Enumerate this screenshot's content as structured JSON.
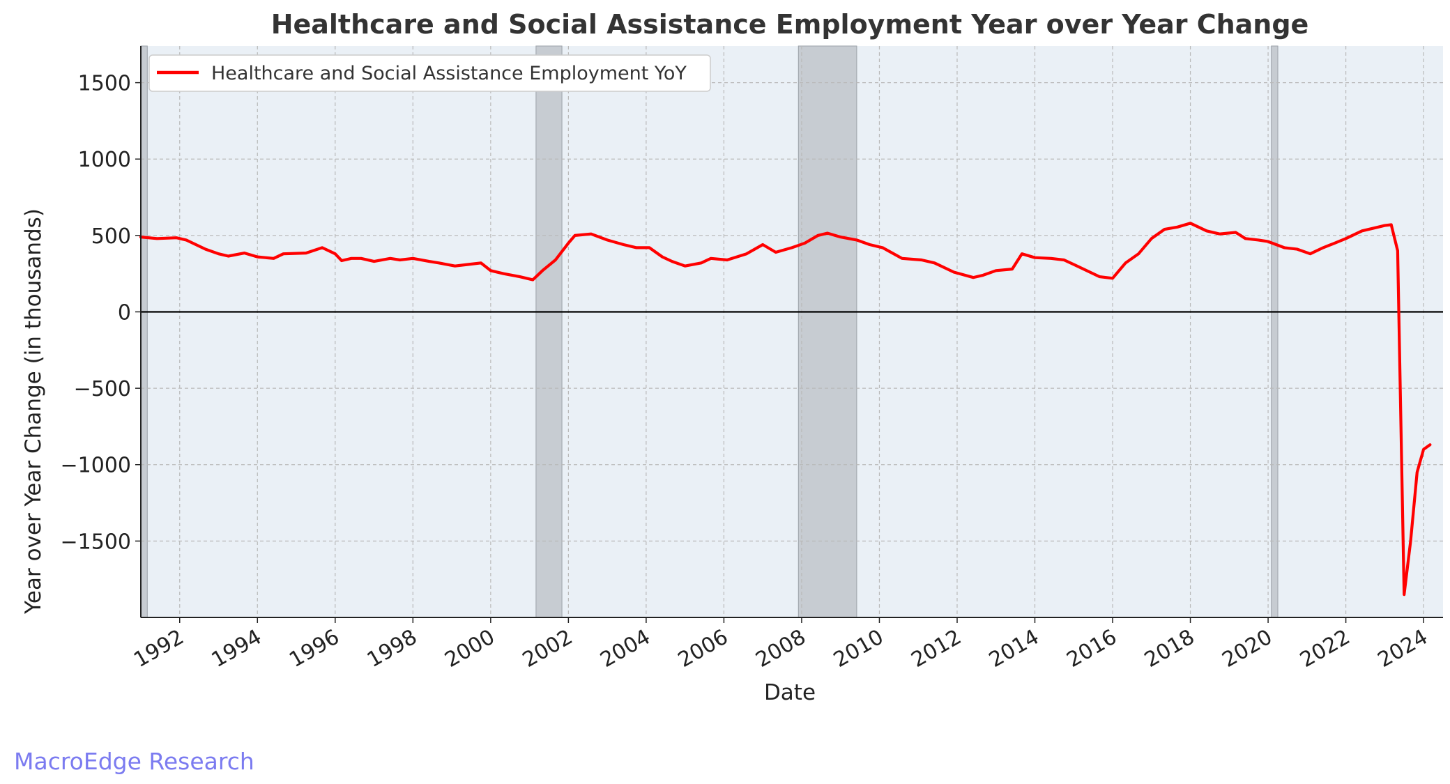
{
  "chart_data": {
    "type": "line",
    "title": "Healthcare and Social Assistance Employment Year over Year Change",
    "xlabel": "Date",
    "ylabel": "Year over Year Change (in thousands)",
    "x_ticks": [
      "1992",
      "1994",
      "1996",
      "1998",
      "2000",
      "2002",
      "2004",
      "2006",
      "2008",
      "2010",
      "2012",
      "2014",
      "2016",
      "2018",
      "2020",
      "2022",
      "2024"
    ],
    "y_ticks": [
      1500,
      1000,
      500,
      0,
      -500,
      -1000,
      -1500
    ],
    "y_tick_labels": [
      "1500",
      "1000",
      "500",
      "0",
      "−500",
      "−1000",
      "−1500"
    ],
    "xlim": [
      "1991-01",
      "2024-07"
    ],
    "ylim": [
      -2000,
      1740
    ],
    "grid": true,
    "legend_position": "top-left",
    "zero_line": true,
    "recessions": [
      [
        "1991-01",
        "1991-03"
      ],
      [
        "2001-03",
        "2001-11"
      ],
      [
        "2007-12",
        "2009-06"
      ],
      [
        "2020-02",
        "2020-04"
      ]
    ],
    "series": [
      {
        "name": "Healthcare and Social Assistance Employment YoY",
        "color": "#ff0000",
        "points": [
          [
            "1991-01",
            490
          ],
          [
            "1991-06",
            480
          ],
          [
            "1991-12",
            485
          ],
          [
            "1992-03",
            470
          ],
          [
            "1992-06",
            440
          ],
          [
            "1992-09",
            410
          ],
          [
            "1993-01",
            380
          ],
          [
            "1993-04",
            365
          ],
          [
            "1993-09",
            385
          ],
          [
            "1994-01",
            360
          ],
          [
            "1994-06",
            350
          ],
          [
            "1994-09",
            380
          ],
          [
            "1995-04",
            385
          ],
          [
            "1995-09",
            420
          ],
          [
            "1996-01",
            380
          ],
          [
            "1996-03",
            335
          ],
          [
            "1996-06",
            350
          ],
          [
            "1996-09",
            350
          ],
          [
            "1997-01",
            330
          ],
          [
            "1997-06",
            350
          ],
          [
            "1997-09",
            340
          ],
          [
            "1998-01",
            350
          ],
          [
            "1998-06",
            330
          ],
          [
            "1998-09",
            320
          ],
          [
            "1999-02",
            300
          ],
          [
            "1999-06",
            310
          ],
          [
            "1999-10",
            320
          ],
          [
            "2000-01",
            270
          ],
          [
            "2000-05",
            250
          ],
          [
            "2000-10",
            230
          ],
          [
            "2001-02",
            210
          ],
          [
            "2001-05",
            270
          ],
          [
            "2001-09",
            340
          ],
          [
            "2002-01",
            450
          ],
          [
            "2002-03",
            500
          ],
          [
            "2002-08",
            510
          ],
          [
            "2003-01",
            470
          ],
          [
            "2003-06",
            440
          ],
          [
            "2003-10",
            420
          ],
          [
            "2004-02",
            420
          ],
          [
            "2004-06",
            360
          ],
          [
            "2004-09",
            330
          ],
          [
            "2005-01",
            300
          ],
          [
            "2005-06",
            320
          ],
          [
            "2005-09",
            350
          ],
          [
            "2006-02",
            340
          ],
          [
            "2006-08",
            380
          ],
          [
            "2007-01",
            440
          ],
          [
            "2007-05",
            390
          ],
          [
            "2007-10",
            420
          ],
          [
            "2008-02",
            450
          ],
          [
            "2008-06",
            500
          ],
          [
            "2008-09",
            515
          ],
          [
            "2009-01",
            490
          ],
          [
            "2009-06",
            470
          ],
          [
            "2009-10",
            440
          ],
          [
            "2010-02",
            420
          ],
          [
            "2010-08",
            350
          ],
          [
            "2011-02",
            340
          ],
          [
            "2011-06",
            320
          ],
          [
            "2011-12",
            260
          ],
          [
            "2012-06",
            225
          ],
          [
            "2012-09",
            240
          ],
          [
            "2013-01",
            270
          ],
          [
            "2013-06",
            280
          ],
          [
            "2013-09",
            380
          ],
          [
            "2014-01",
            355
          ],
          [
            "2014-06",
            350
          ],
          [
            "2014-10",
            340
          ],
          [
            "2015-01",
            310
          ],
          [
            "2015-06",
            260
          ],
          [
            "2015-09",
            230
          ],
          [
            "2016-01",
            220
          ],
          [
            "2016-05",
            320
          ],
          [
            "2016-09",
            380
          ],
          [
            "2017-01",
            480
          ],
          [
            "2017-05",
            540
          ],
          [
            "2017-09",
            555
          ],
          [
            "2018-01",
            580
          ],
          [
            "2018-06",
            530
          ],
          [
            "2018-10",
            510
          ],
          [
            "2019-03",
            520
          ],
          [
            "2019-06",
            480
          ],
          [
            "2019-10",
            470
          ],
          [
            "2020-01",
            460
          ],
          [
            "2020-06",
            420
          ],
          [
            "2020-10",
            410
          ],
          [
            "2021-02",
            380
          ],
          [
            "2021-06",
            420
          ],
          [
            "2021-09",
            445
          ],
          [
            "2022-01",
            480
          ],
          [
            "2022-06",
            530
          ],
          [
            "2022-10",
            550
          ],
          [
            "2023-01",
            565
          ],
          [
            "2023-03",
            570
          ],
          [
            "2023-05",
            400
          ],
          [
            "2023-07",
            -1850
          ],
          [
            "2023-09",
            -1500
          ],
          [
            "2023-11",
            -1050
          ],
          [
            "2024-01",
            -900
          ],
          [
            "2024-03",
            -870
          ]
        ]
      }
    ]
  },
  "watermark": "MacroEdge Research"
}
